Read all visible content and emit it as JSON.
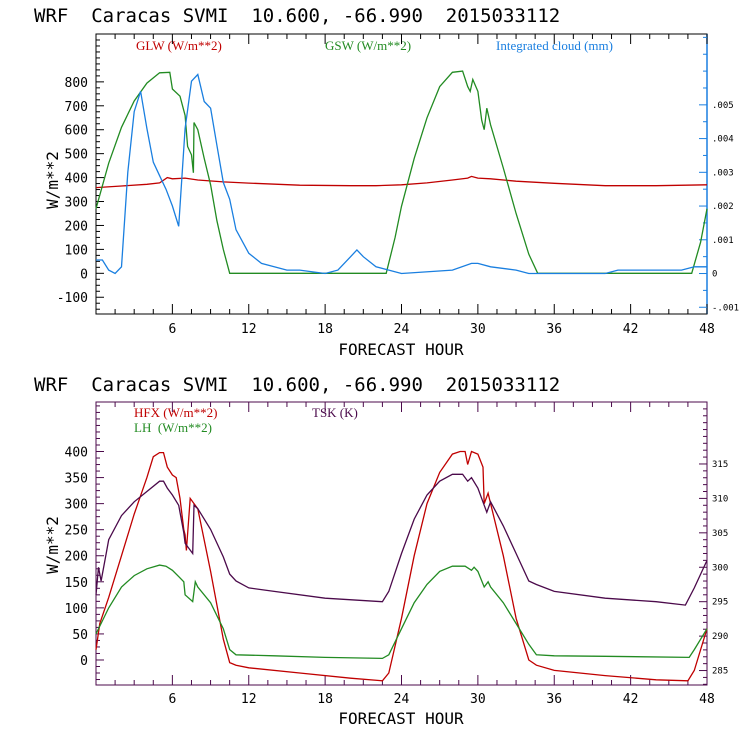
{
  "chart_data": [
    {
      "type": "line",
      "title": "WRF  Caracas SVMI  10.600, -66.990  2015033112",
      "xlabel": "FORECAST HOUR",
      "ylabel": "W/m**2",
      "y2label": "Integrated cloud (mm)",
      "xlim": [
        0,
        48
      ],
      "ylim": [
        -170,
        1000
      ],
      "y2lim": [
        -0.0012,
        0.0071
      ],
      "xticks": [
        6,
        12,
        18,
        24,
        30,
        36,
        42,
        48
      ],
      "xtick_labels": [
        "6",
        "12",
        "18",
        "24",
        "30",
        "36",
        "42",
        "48"
      ],
      "yticks": [
        -100,
        0,
        100,
        200,
        300,
        400,
        500,
        600,
        700,
        800
      ],
      "ytick_labels": [
        "-100",
        "0",
        "100",
        "200",
        "300",
        "400",
        "500",
        "600",
        "700",
        "800"
      ],
      "y2ticks": [
        -0.001,
        0,
        0.001,
        0.002,
        0.003,
        0.004,
        0.005
      ],
      "y2tick_labels": [
        "-.001",
        "0",
        ".001",
        ".002",
        ".003",
        ".004",
        ".005"
      ],
      "legend": "top",
      "series": [
        {
          "name": "GLW (W/m**2)",
          "axis": "left",
          "color": "#c00000",
          "x": [
            0,
            2,
            4,
            5,
            5.6,
            6,
            7,
            8,
            10,
            12,
            16,
            20,
            22,
            24,
            26,
            28,
            29.2,
            29.5,
            30,
            31,
            33,
            36,
            40,
            44,
            48
          ],
          "y": [
            358,
            365,
            372,
            378,
            400,
            395,
            398,
            390,
            382,
            377,
            368,
            366,
            366,
            370,
            378,
            390,
            398,
            405,
            398,
            395,
            385,
            376,
            366,
            366,
            370
          ]
        },
        {
          "name": "GSW (W/m**2)",
          "axis": "left",
          "color": "#228b22",
          "x": [
            0,
            1,
            2,
            3,
            4,
            5,
            5.8,
            6,
            6.6,
            7,
            7.2,
            7.5,
            7.65,
            7.7,
            8,
            8.5,
            9,
            9.5,
            10,
            10.5,
            12,
            16,
            20,
            22.8,
            23.5,
            24,
            25,
            26,
            27,
            28,
            28.8,
            29.2,
            29.4,
            29.6,
            30,
            30.3,
            30.5,
            30.7,
            31,
            32,
            33,
            34,
            34.7,
            40,
            46.8,
            47.5,
            48
          ],
          "y": [
            270,
            460,
            610,
            720,
            795,
            838,
            840,
            770,
            740,
            660,
            530,
            495,
            420,
            630,
            600,
            480,
            370,
            220,
            100,
            0,
            0,
            0,
            0,
            0,
            150,
            280,
            480,
            650,
            780,
            840,
            845,
            780,
            760,
            810,
            760,
            640,
            600,
            690,
            620,
            440,
            250,
            80,
            0,
            0,
            0,
            130,
            270
          ]
        },
        {
          "name": "Integrated cloud (mm)",
          "axis": "right",
          "color": "#1a7fe0",
          "x": [
            0,
            0.5,
            1,
            1.5,
            2,
            2.5,
            3,
            3.5,
            4,
            4.5,
            5,
            5.5,
            6,
            6.5,
            7,
            7.5,
            8,
            8.5,
            9,
            9.5,
            10,
            10.5,
            11,
            12,
            13,
            14,
            15,
            16,
            18,
            19,
            20,
            20.5,
            21,
            22,
            23,
            24,
            28,
            29.5,
            30,
            31,
            33,
            34,
            40,
            41,
            46,
            47,
            48
          ],
          "y": [
            0.0004,
            0.0004,
            0.0001,
            0.0,
            0.0002,
            0.003,
            0.0048,
            0.0054,
            0.0043,
            0.0033,
            0.0029,
            0.0025,
            0.002,
            0.0014,
            0.0043,
            0.0057,
            0.0059,
            0.0051,
            0.0049,
            0.0038,
            0.0027,
            0.0022,
            0.0013,
            0.0006,
            0.0003,
            0.0002,
            0.0001,
            0.0001,
            0.0,
            0.0001,
            0.0005,
            0.0007,
            0.0005,
            0.0002,
            0.0001,
            0.0,
            0.0001,
            0.0003,
            0.0003,
            0.0002,
            0.0001,
            0.0,
            0.0,
            0.0001,
            0.0001,
            0.0002,
            0.0002
          ]
        }
      ]
    },
    {
      "type": "line",
      "title": "WRF  Caracas SVMI  10.600, -66.990  2015033112",
      "xlabel": "FORECAST HOUR",
      "ylabel": "W/m**2",
      "y2label": "TSK (K)",
      "xlim": [
        0,
        48
      ],
      "ylim": [
        -48,
        495
      ],
      "y2lim": [
        282.9,
        324
      ],
      "xticks": [
        6,
        12,
        18,
        24,
        30,
        36,
        42,
        48
      ],
      "xtick_labels": [
        "6",
        "12",
        "18",
        "24",
        "30",
        "36",
        "42",
        "48"
      ],
      "yticks": [
        0,
        50,
        100,
        150,
        200,
        250,
        300,
        350,
        400
      ],
      "ytick_labels": [
        "0",
        "50",
        "100",
        "150",
        "200",
        "250",
        "300",
        "350",
        "400"
      ],
      "y2ticks": [
        285,
        290,
        295,
        300,
        305,
        310,
        315
      ],
      "y2tick_labels": [
        "285",
        "290",
        "295",
        "300",
        "305",
        "310",
        "315"
      ],
      "legend": "top-left",
      "series": [
        {
          "name": "HFX (W/m**2)",
          "axis": "left",
          "color": "#c00000",
          "x": [
            0,
            0.3,
            1,
            2,
            3,
            4,
            4.5,
            5,
            5.3,
            5.6,
            6,
            6.3,
            6.6,
            6.9,
            7.0,
            7.1,
            7.4,
            8,
            9,
            10,
            10.5,
            11,
            12,
            16,
            20,
            22.5,
            23,
            24,
            25,
            26,
            27,
            28,
            28.6,
            29,
            29.2,
            29.5,
            30,
            30.4,
            30.5,
            30.8,
            31,
            32,
            33,
            34,
            34.6,
            36,
            40,
            44,
            46.5,
            47,
            48
          ],
          "y": [
            20,
            70,
            120,
            200,
            280,
            350,
            390,
            398,
            398,
            370,
            355,
            350,
            310,
            250,
            240,
            210,
            310,
            290,
            170,
            40,
            -5,
            -10,
            -15,
            -25,
            -35,
            -40,
            -25,
            80,
            200,
            300,
            360,
            395,
            400,
            400,
            375,
            400,
            395,
            370,
            300,
            320,
            300,
            200,
            80,
            0,
            -10,
            -20,
            -30,
            -38,
            -40,
            -20,
            60
          ]
        },
        {
          "name": "LH (W/m**2)",
          "axis": "left",
          "color": "#228b22",
          "x": [
            0,
            0.3,
            1,
            2,
            3,
            4,
            5,
            5.5,
            6,
            6.5,
            6.9,
            7.0,
            7.6,
            7.8,
            8,
            9,
            10,
            10.5,
            11,
            14,
            18,
            22.5,
            23,
            24,
            25,
            26,
            27,
            28,
            29,
            29.5,
            29.7,
            30,
            30.5,
            30.8,
            31,
            32,
            33,
            34,
            34.6,
            36,
            40,
            46.6,
            47,
            48
          ],
          "y": [
            50,
            65,
            100,
            140,
            162,
            175,
            182,
            180,
            172,
            160,
            150,
            125,
            112,
            150,
            140,
            110,
            60,
            20,
            10,
            8,
            5,
            3,
            10,
            60,
            110,
            145,
            170,
            180,
            180,
            172,
            178,
            170,
            140,
            150,
            140,
            110,
            70,
            30,
            10,
            8,
            7,
            5,
            20,
            60
          ]
        },
        {
          "name": "TSK (K)",
          "axis": "right",
          "color": "#4b0a4b",
          "x": [
            0,
            0.2,
            0.4,
            0.8,
            1,
            2,
            3,
            4,
            5,
            5.3,
            5.6,
            6,
            6.5,
            6.9,
            7.0,
            7.6,
            7.7,
            8,
            9,
            10,
            10.5,
            11,
            12,
            14,
            18,
            22.5,
            23,
            24,
            25,
            26,
            27,
            28,
            28.8,
            29.2,
            29.5,
            30,
            30.5,
            30.7,
            31,
            32,
            33,
            34,
            34.6,
            36,
            40,
            44,
            46.3,
            47,
            48
          ],
          "y": [
            296,
            300,
            298,
            302,
            304,
            307.5,
            309.5,
            311,
            312.5,
            312.5,
            311.5,
            310.5,
            309,
            305,
            303.5,
            302,
            309,
            308.5,
            305.5,
            301.5,
            299,
            298,
            297,
            296.5,
            295.5,
            295,
            296.5,
            302,
            307,
            310.5,
            312.5,
            313.5,
            313.5,
            312.5,
            313,
            311.5,
            309,
            308,
            309.5,
            306,
            302,
            298,
            297.5,
            296.5,
            295.5,
            295,
            294.5,
            297,
            301
          ]
        }
      ]
    }
  ],
  "plot1": {
    "title": "WRF  Caracas SVMI  10.600, -66.990  2015033112",
    "legend": [
      "GLW (W/m**2)",
      "GSW (W/m**2)",
      "Integrated cloud (mm)"
    ],
    "xlabel": "FORECAST HOUR",
    "ylabel": "W/m**2"
  },
  "plot2": {
    "title": "WRF  Caracas SVMI  10.600, -66.990  2015033112",
    "legend": [
      "HFX (W/m**2)",
      "LH  (W/m**2)",
      "TSK (K)"
    ],
    "xlabel": "FORECAST HOUR",
    "ylabel": "W/m**2"
  }
}
